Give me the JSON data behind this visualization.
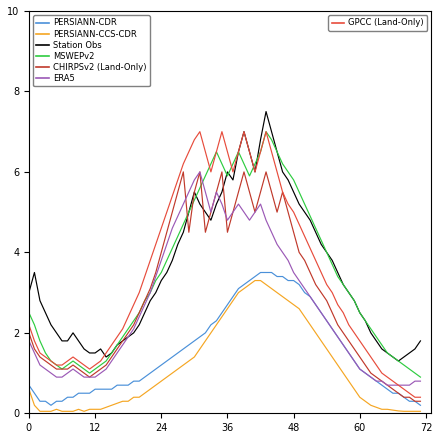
{
  "ylim": [
    0,
    10
  ],
  "xlim": [
    0,
    73
  ],
  "yticks": [
    0,
    2,
    4,
    6,
    8,
    10
  ],
  "xticks": [
    0,
    12,
    24,
    36,
    48,
    60,
    72
  ],
  "colors": {
    "PERSIANN-CDR": "#4a90d9",
    "PERSIANN-CCS-CDR": "#f5a623",
    "Station Obs": "#000000",
    "MSWEPv2": "#2ecc40",
    "CHIRPSv2 (Land-Only)": "#c0392b",
    "ERA5": "#9b59b6",
    "GPCC (Land-Only)": "#e74c3c"
  },
  "persiann_cdr": [
    0.7,
    0.5,
    0.3,
    0.3,
    0.2,
    0.3,
    0.3,
    0.4,
    0.4,
    0.5,
    0.5,
    0.5,
    0.6,
    0.6,
    0.6,
    0.6,
    0.7,
    0.7,
    0.7,
    0.8,
    0.8,
    0.9,
    1.0,
    1.1,
    1.2,
    1.3,
    1.4,
    1.5,
    1.6,
    1.7,
    1.8,
    1.9,
    2.0,
    2.2,
    2.3,
    2.5,
    2.7,
    2.9,
    3.1,
    3.2,
    3.3,
    3.4,
    3.5,
    3.5,
    3.5,
    3.4,
    3.4,
    3.3,
    3.3,
    3.2,
    3.0,
    2.9,
    2.7,
    2.5,
    2.3,
    2.1,
    1.9,
    1.7,
    1.5,
    1.3,
    1.1,
    1.0,
    0.9,
    0.8,
    0.7,
    0.6,
    0.5,
    0.5,
    0.4,
    0.3,
    0.3,
    0.2
  ],
  "persiann_ccs_cdr": [
    0.6,
    0.2,
    0.05,
    0.05,
    0.05,
    0.1,
    0.05,
    0.05,
    0.05,
    0.1,
    0.05,
    0.1,
    0.1,
    0.1,
    0.15,
    0.2,
    0.25,
    0.3,
    0.3,
    0.4,
    0.4,
    0.5,
    0.6,
    0.7,
    0.8,
    0.9,
    1.0,
    1.1,
    1.2,
    1.3,
    1.4,
    1.6,
    1.8,
    2.0,
    2.2,
    2.4,
    2.6,
    2.8,
    3.0,
    3.1,
    3.2,
    3.3,
    3.3,
    3.2,
    3.1,
    3.0,
    2.9,
    2.8,
    2.7,
    2.6,
    2.4,
    2.2,
    2.0,
    1.8,
    1.6,
    1.4,
    1.2,
    1.0,
    0.8,
    0.6,
    0.4,
    0.3,
    0.2,
    0.15,
    0.1,
    0.1,
    0.08,
    0.06,
    0.05,
    0.05,
    0.05,
    0.05
  ],
  "station_obs": [
    3.0,
    3.5,
    2.8,
    2.5,
    2.2,
    2.0,
    1.8,
    1.8,
    2.0,
    1.8,
    1.6,
    1.5,
    1.5,
    1.6,
    1.4,
    1.5,
    1.7,
    1.8,
    1.9,
    2.0,
    2.2,
    2.5,
    2.8,
    3.0,
    3.3,
    3.5,
    3.8,
    4.2,
    4.5,
    5.0,
    5.5,
    5.2,
    5.0,
    4.8,
    5.2,
    5.5,
    6.0,
    5.8,
    6.5,
    7.0,
    6.5,
    6.0,
    6.8,
    7.5,
    7.0,
    6.5,
    6.0,
    5.8,
    5.5,
    5.2,
    5.0,
    4.8,
    4.5,
    4.2,
    4.0,
    3.8,
    3.5,
    3.2,
    3.0,
    2.8,
    2.5,
    2.3,
    2.0,
    1.8,
    1.6,
    1.5,
    1.4,
    1.3,
    1.4,
    1.5,
    1.6,
    1.8
  ],
  "mswep": [
    2.5,
    2.2,
    1.8,
    1.5,
    1.3,
    1.2,
    1.1,
    1.2,
    1.3,
    1.2,
    1.1,
    1.0,
    1.1,
    1.2,
    1.3,
    1.5,
    1.7,
    1.9,
    2.1,
    2.3,
    2.5,
    2.8,
    3.0,
    3.3,
    3.5,
    3.8,
    4.1,
    4.4,
    4.7,
    5.0,
    5.3,
    5.6,
    5.9,
    6.2,
    6.5,
    6.2,
    5.9,
    6.2,
    6.5,
    6.2,
    5.9,
    6.2,
    6.5,
    7.0,
    6.8,
    6.5,
    6.2,
    6.0,
    5.8,
    5.5,
    5.2,
    4.9,
    4.6,
    4.3,
    4.0,
    3.7,
    3.4,
    3.2,
    3.0,
    2.8,
    2.5,
    2.3,
    2.1,
    1.9,
    1.7,
    1.5,
    1.4,
    1.3,
    1.2,
    1.1,
    1.0,
    0.9
  ],
  "chirps": [
    2.0,
    1.6,
    1.4,
    1.3,
    1.2,
    1.1,
    1.1,
    1.1,
    1.2,
    1.1,
    1.0,
    0.9,
    1.0,
    1.1,
    1.2,
    1.4,
    1.6,
    1.8,
    2.0,
    2.2,
    2.5,
    2.8,
    3.1,
    3.5,
    4.0,
    4.5,
    5.0,
    5.5,
    6.0,
    4.5,
    5.5,
    6.0,
    4.5,
    5.0,
    5.5,
    6.0,
    4.5,
    5.0,
    5.5,
    6.0,
    5.5,
    5.0,
    5.5,
    6.0,
    5.5,
    5.0,
    5.5,
    5.0,
    4.5,
    4.0,
    3.8,
    3.5,
    3.2,
    3.0,
    2.8,
    2.5,
    2.2,
    2.0,
    1.8,
    1.6,
    1.4,
    1.2,
    1.0,
    0.9,
    0.8,
    0.7,
    0.6,
    0.5,
    0.4,
    0.4,
    0.3,
    0.3
  ],
  "era5": [
    1.8,
    1.5,
    1.2,
    1.1,
    1.0,
    0.9,
    0.9,
    1.0,
    1.1,
    1.0,
    0.9,
    0.9,
    0.9,
    1.0,
    1.1,
    1.3,
    1.5,
    1.7,
    1.9,
    2.1,
    2.4,
    2.7,
    3.0,
    3.4,
    3.8,
    4.2,
    4.6,
    4.9,
    5.2,
    5.5,
    5.8,
    6.0,
    5.5,
    5.0,
    5.5,
    5.2,
    4.8,
    5.0,
    5.2,
    5.0,
    4.8,
    5.0,
    5.2,
    4.8,
    4.5,
    4.2,
    4.0,
    3.8,
    3.5,
    3.3,
    3.1,
    2.9,
    2.7,
    2.5,
    2.3,
    2.1,
    1.9,
    1.7,
    1.5,
    1.3,
    1.1,
    1.0,
    0.9,
    0.8,
    0.8,
    0.7,
    0.7,
    0.7,
    0.7,
    0.7,
    0.8,
    0.8
  ],
  "gpcc": [
    2.2,
    1.8,
    1.5,
    1.4,
    1.3,
    1.2,
    1.2,
    1.3,
    1.4,
    1.3,
    1.2,
    1.1,
    1.2,
    1.3,
    1.5,
    1.7,
    1.9,
    2.1,
    2.4,
    2.7,
    3.0,
    3.4,
    3.8,
    4.2,
    4.6,
    5.0,
    5.4,
    5.8,
    6.2,
    6.5,
    6.8,
    7.0,
    6.5,
    6.0,
    6.5,
    7.0,
    6.5,
    6.0,
    6.5,
    7.0,
    6.5,
    6.0,
    6.5,
    7.0,
    6.5,
    6.0,
    5.5,
    5.2,
    5.0,
    4.7,
    4.4,
    4.1,
    3.8,
    3.5,
    3.2,
    3.0,
    2.7,
    2.5,
    2.2,
    2.0,
    1.8,
    1.6,
    1.4,
    1.2,
    1.0,
    0.9,
    0.8,
    0.7,
    0.6,
    0.5,
    0.4,
    0.4
  ]
}
